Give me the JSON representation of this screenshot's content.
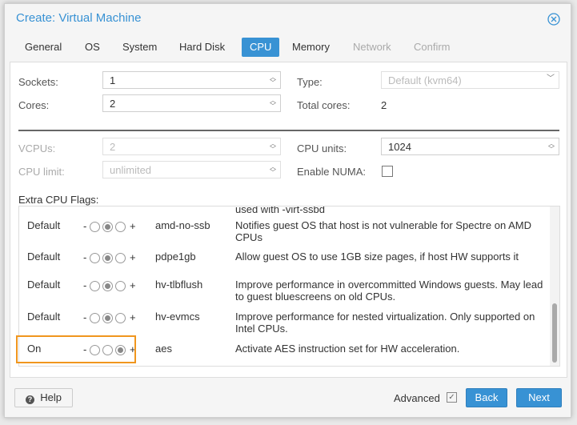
{
  "header": {
    "title": "Create: Virtual Machine"
  },
  "tabs": [
    "General",
    "OS",
    "System",
    "Hard Disk",
    "CPU",
    "Memory",
    "Network",
    "Confirm"
  ],
  "form": {
    "sockets": {
      "label": "Sockets:",
      "value": "1"
    },
    "cores": {
      "label": "Cores:",
      "value": "2"
    },
    "type": {
      "label": "Type:",
      "value": "Default (kvm64)"
    },
    "total_cores": {
      "label": "Total cores:",
      "value": "2"
    },
    "vcpus": {
      "label": "VCPUs:",
      "value": "2"
    },
    "cpu_units": {
      "label": "CPU units:",
      "value": "1024"
    },
    "cpu_limit": {
      "label": "CPU limit:",
      "value": "unlimited"
    },
    "enable_numa": {
      "label": "Enable NUMA:"
    }
  },
  "flags": {
    "label": "Extra CPU Flags:",
    "partial_row": "used with -virt-ssbd",
    "rows": [
      [
        "Default",
        "amd-no-ssb",
        "Notifies guest OS that host is not vulnerable for Spectre on AMD CPUs"
      ],
      [
        "Default",
        "pdpe1gb",
        "Allow guest OS to use 1GB size pages, if host HW supports it"
      ],
      [
        "Default",
        "hv-tlbflush",
        "Improve performance in overcommitted Windows guests. May lead to guest bluescreens on old CPUs."
      ],
      [
        "Default",
        "hv-evmcs",
        "Improve performance for nested virtualization. Only supported on Intel CPUs."
      ],
      [
        "On",
        "aes",
        "Activate AES instruction set for HW acceleration."
      ]
    ]
  },
  "footer": {
    "help": "Help",
    "advanced": "Advanced",
    "back": "Back",
    "next": "Next"
  }
}
